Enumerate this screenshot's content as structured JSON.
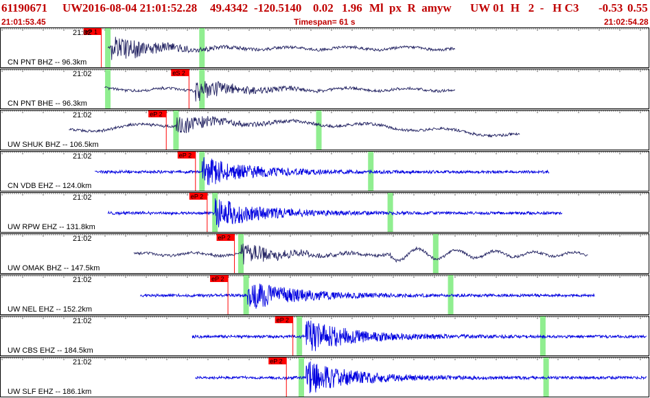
{
  "header": {
    "event_id": "61190671",
    "network": "UW",
    "datetime": "2016-08-04 21:01:52.28",
    "lat": "49.4342",
    "lon": "-120.5140",
    "depth": "0.02",
    "magnitude": "1.96",
    "mag_type": "Ml",
    "flags": "px  R  amyw",
    "info": "UW 01  H   2  -   H C3",
    "v1": "-0.53",
    "v2": "0.55",
    "start_time": "21:01:53.45",
    "timespan": "Timespan=  61 s",
    "end_time": "21:02:54.28"
  },
  "colors": {
    "header_text": "#c00000",
    "trace_dark": "#202060",
    "trace_blue": "#0000e0",
    "pick_flag": "#ff0000",
    "marker_green": "#90ee90"
  },
  "traces": [
    {
      "time": "21:02",
      "label": "CN PNT BHZ -- 96.3km",
      "pick": "eP 1",
      "color": "dark",
      "start": 0.165,
      "end": 0.7,
      "onset": 0.17,
      "pick_x": 0.155,
      "greens": [
        0.165,
        0.31
      ],
      "amp": 0.8,
      "kind": "long"
    },
    {
      "time": "21:02",
      "label": "CN PNT BHE -- 96.3km",
      "pick": "eS 2",
      "color": "dark",
      "start": 0.16,
      "end": 0.7,
      "onset": 0.3,
      "pick_x": 0.29,
      "greens": [
        0.165,
        0.31
      ],
      "amp": 0.6,
      "kind": "long"
    },
    {
      "time": "21:02",
      "label": "UW SHUK BHZ -- 106.5km",
      "pick": "eP 2",
      "color": "dark",
      "start": 0.105,
      "end": 0.8,
      "onset": 0.27,
      "pick_x": 0.255,
      "greens": [
        0.27,
        0.49
      ],
      "amp": 0.5,
      "kind": "swell"
    },
    {
      "time": "21:02",
      "label": "CN VDB EHZ -- 124.0km",
      "pick": "eP 2",
      "color": "blue",
      "start": 0.145,
      "end": 0.845,
      "onset": 0.31,
      "pick_x": 0.3,
      "greens": [
        0.31,
        0.57
      ],
      "amp": 0.8,
      "kind": "short"
    },
    {
      "time": "21:02",
      "label": "UW RPW EHZ -- 131.8km",
      "pick": "eP 2",
      "color": "blue",
      "start": 0.165,
      "end": 0.865,
      "onset": 0.33,
      "pick_x": 0.318,
      "greens": [
        0.33,
        0.6
      ],
      "amp": 0.8,
      "kind": "short"
    },
    {
      "time": "21:02",
      "label": "UW OMAK BHZ -- 147.5km",
      "pick": "eP 2",
      "color": "dark",
      "start": 0.205,
      "end": 0.905,
      "onset": 0.37,
      "pick_x": 0.36,
      "greens": [
        0.37,
        0.67
      ],
      "amp": 0.6,
      "kind": "omak"
    },
    {
      "time": "21:02",
      "label": "UW NEL EHZ -- 152.2km",
      "pick": "eP 2",
      "color": "blue",
      "start": 0.215,
      "end": 0.915,
      "onset": 0.38,
      "pick_x": 0.35,
      "greens": [
        0.378,
        0.693
      ],
      "amp": 0.8,
      "kind": "short"
    },
    {
      "time": "21:02",
      "label": "UW CBS EHZ -- 184.5km",
      "pick": "eP 2",
      "color": "blue",
      "start": 0.295,
      "end": 0.995,
      "onset": 0.47,
      "pick_x": 0.45,
      "greens": [
        0.46,
        0.835
      ],
      "amp": 0.9,
      "kind": "short"
    },
    {
      "time": "21:02",
      "label": "UW SLF EHZ -- 186.1km",
      "pick": "eP 2",
      "color": "blue",
      "start": 0.3,
      "end": 0.995,
      "onset": 0.47,
      "pick_x": 0.44,
      "greens": [
        0.463,
        0.84
      ],
      "amp": 0.9,
      "kind": "short"
    }
  ]
}
